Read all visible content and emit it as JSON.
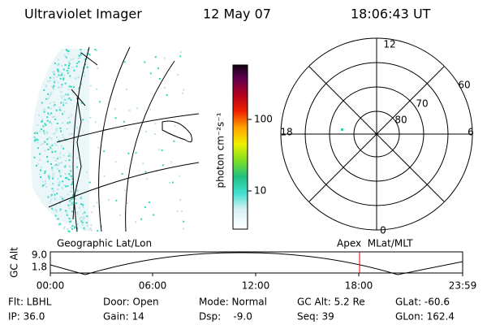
{
  "header": {
    "instrument": "Ultraviolet Imager",
    "date": "12 May 07",
    "time": "18:06:43 UT"
  },
  "colorbar": {
    "unit": "photon cm⁻²s⁻¹",
    "labels": [
      "100",
      "10"
    ]
  },
  "polar": {
    "mlt_labels": [
      "12",
      "18",
      "6",
      "0"
    ],
    "lat_labels": [
      "60",
      "70",
      "80"
    ]
  },
  "timeline": {
    "left_label": "Geographic Lat/Lon",
    "right_label": "Apex  MLat/MLT",
    "axis_label": "GC Alt",
    "alt_labels": [
      "9.0",
      "1.8"
    ],
    "time_labels": [
      "00:00",
      "06:00",
      "12:00",
      "18:00",
      "23:59"
    ]
  },
  "info": {
    "rows": [
      [
        "Flt: LBHL",
        "Door: Open",
        "Mode: Normal",
        "GC Alt: 5.2 Re",
        "GLat: -60.6"
      ],
      [
        "IP: 36.0",
        "Gain: 14",
        "Dsp:    -9.0",
        "Seq: 39",
        "GLon: 162.4"
      ]
    ]
  }
}
